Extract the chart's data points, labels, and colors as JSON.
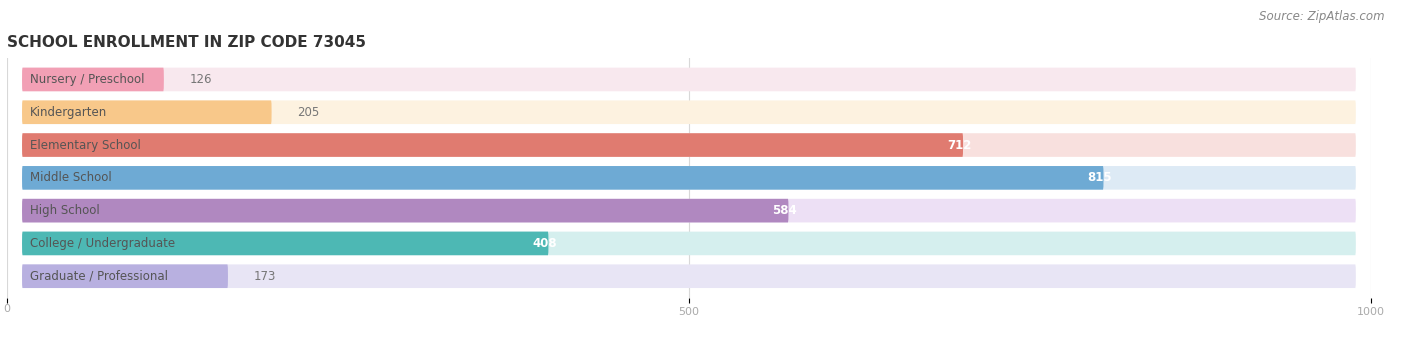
{
  "title": "SCHOOL ENROLLMENT IN ZIP CODE 73045",
  "source": "Source: ZipAtlas.com",
  "categories": [
    "Nursery / Preschool",
    "Kindergarten",
    "Elementary School",
    "Middle School",
    "High School",
    "College / Undergraduate",
    "Graduate / Professional"
  ],
  "values": [
    126,
    205,
    712,
    815,
    584,
    408,
    173
  ],
  "bar_colors": [
    "#f2a0b5",
    "#f8c88a",
    "#e07b70",
    "#6eaad4",
    "#b088c0",
    "#4db8b4",
    "#b8b0e0"
  ],
  "bar_bg_colors": [
    "#f8e8ee",
    "#fdf2e0",
    "#f8e0de",
    "#ddeaf5",
    "#ede0f5",
    "#d5efee",
    "#e8e5f5"
  ],
  "xlim_max": 1000,
  "xticks": [
    0,
    500,
    1000
  ],
  "title_fontsize": 11,
  "label_fontsize": 8.5,
  "value_fontsize": 8.5,
  "source_fontsize": 8.5,
  "background_color": "#ffffff",
  "grid_color": "#d8d8d8",
  "tick_color": "#aaaaaa",
  "label_text_color": "#555555",
  "value_outside_color": "#777777",
  "value_inside_color": "#ffffff"
}
